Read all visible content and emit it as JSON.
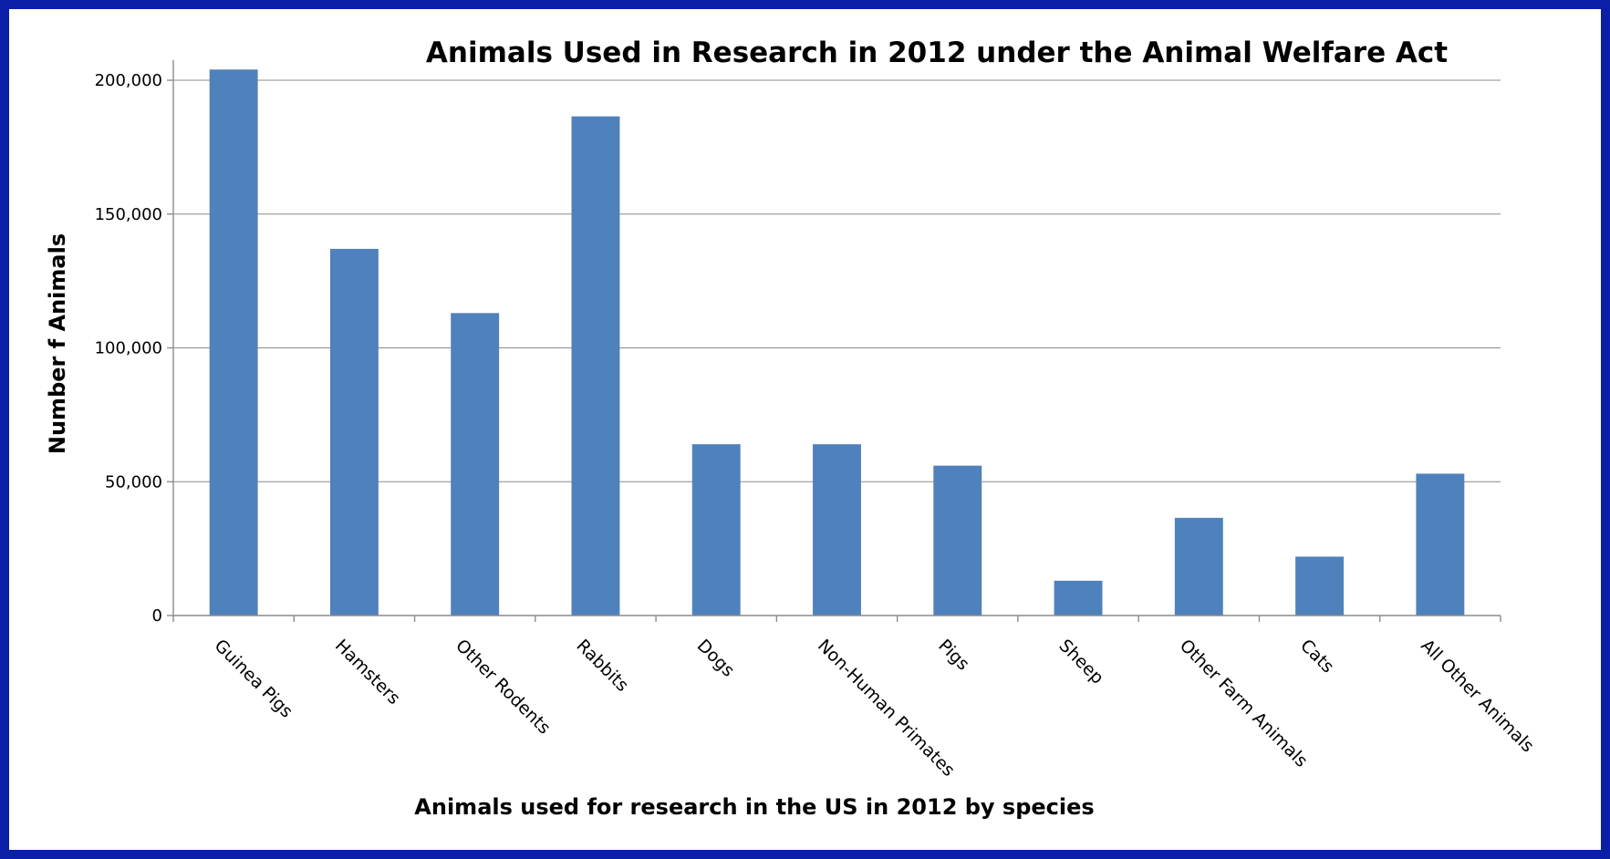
{
  "chart_data": {
    "type": "bar",
    "title": "Animals Used in Research in 2012 under the Animal Welfare Act",
    "xlabel": "Animals used for research in the US in 2012 by species",
    "ylabel": "Number f Animals",
    "categories": [
      "Guinea Pigs",
      "Hamsters",
      "Other Rodents",
      "Rabbits",
      "Dogs",
      "Non-Human Primates",
      "Pigs",
      "Sheep",
      "Other Farm Animals",
      "Cats",
      "All Other Animals"
    ],
    "values": [
      204000,
      137000,
      113000,
      186500,
      64000,
      64000,
      56000,
      13000,
      36500,
      22000,
      53000
    ],
    "ylim": [
      0,
      200000
    ],
    "yticks": [
      0,
      50000,
      100000,
      150000,
      200000
    ],
    "ytick_labels": [
      "0",
      "50,000",
      "100,000",
      "150,000",
      "200,000"
    ],
    "grid": true,
    "legend": "none",
    "colors": {
      "bar": "#4f81bd",
      "background": "#ffffff",
      "border": "#0a1ea6"
    }
  }
}
